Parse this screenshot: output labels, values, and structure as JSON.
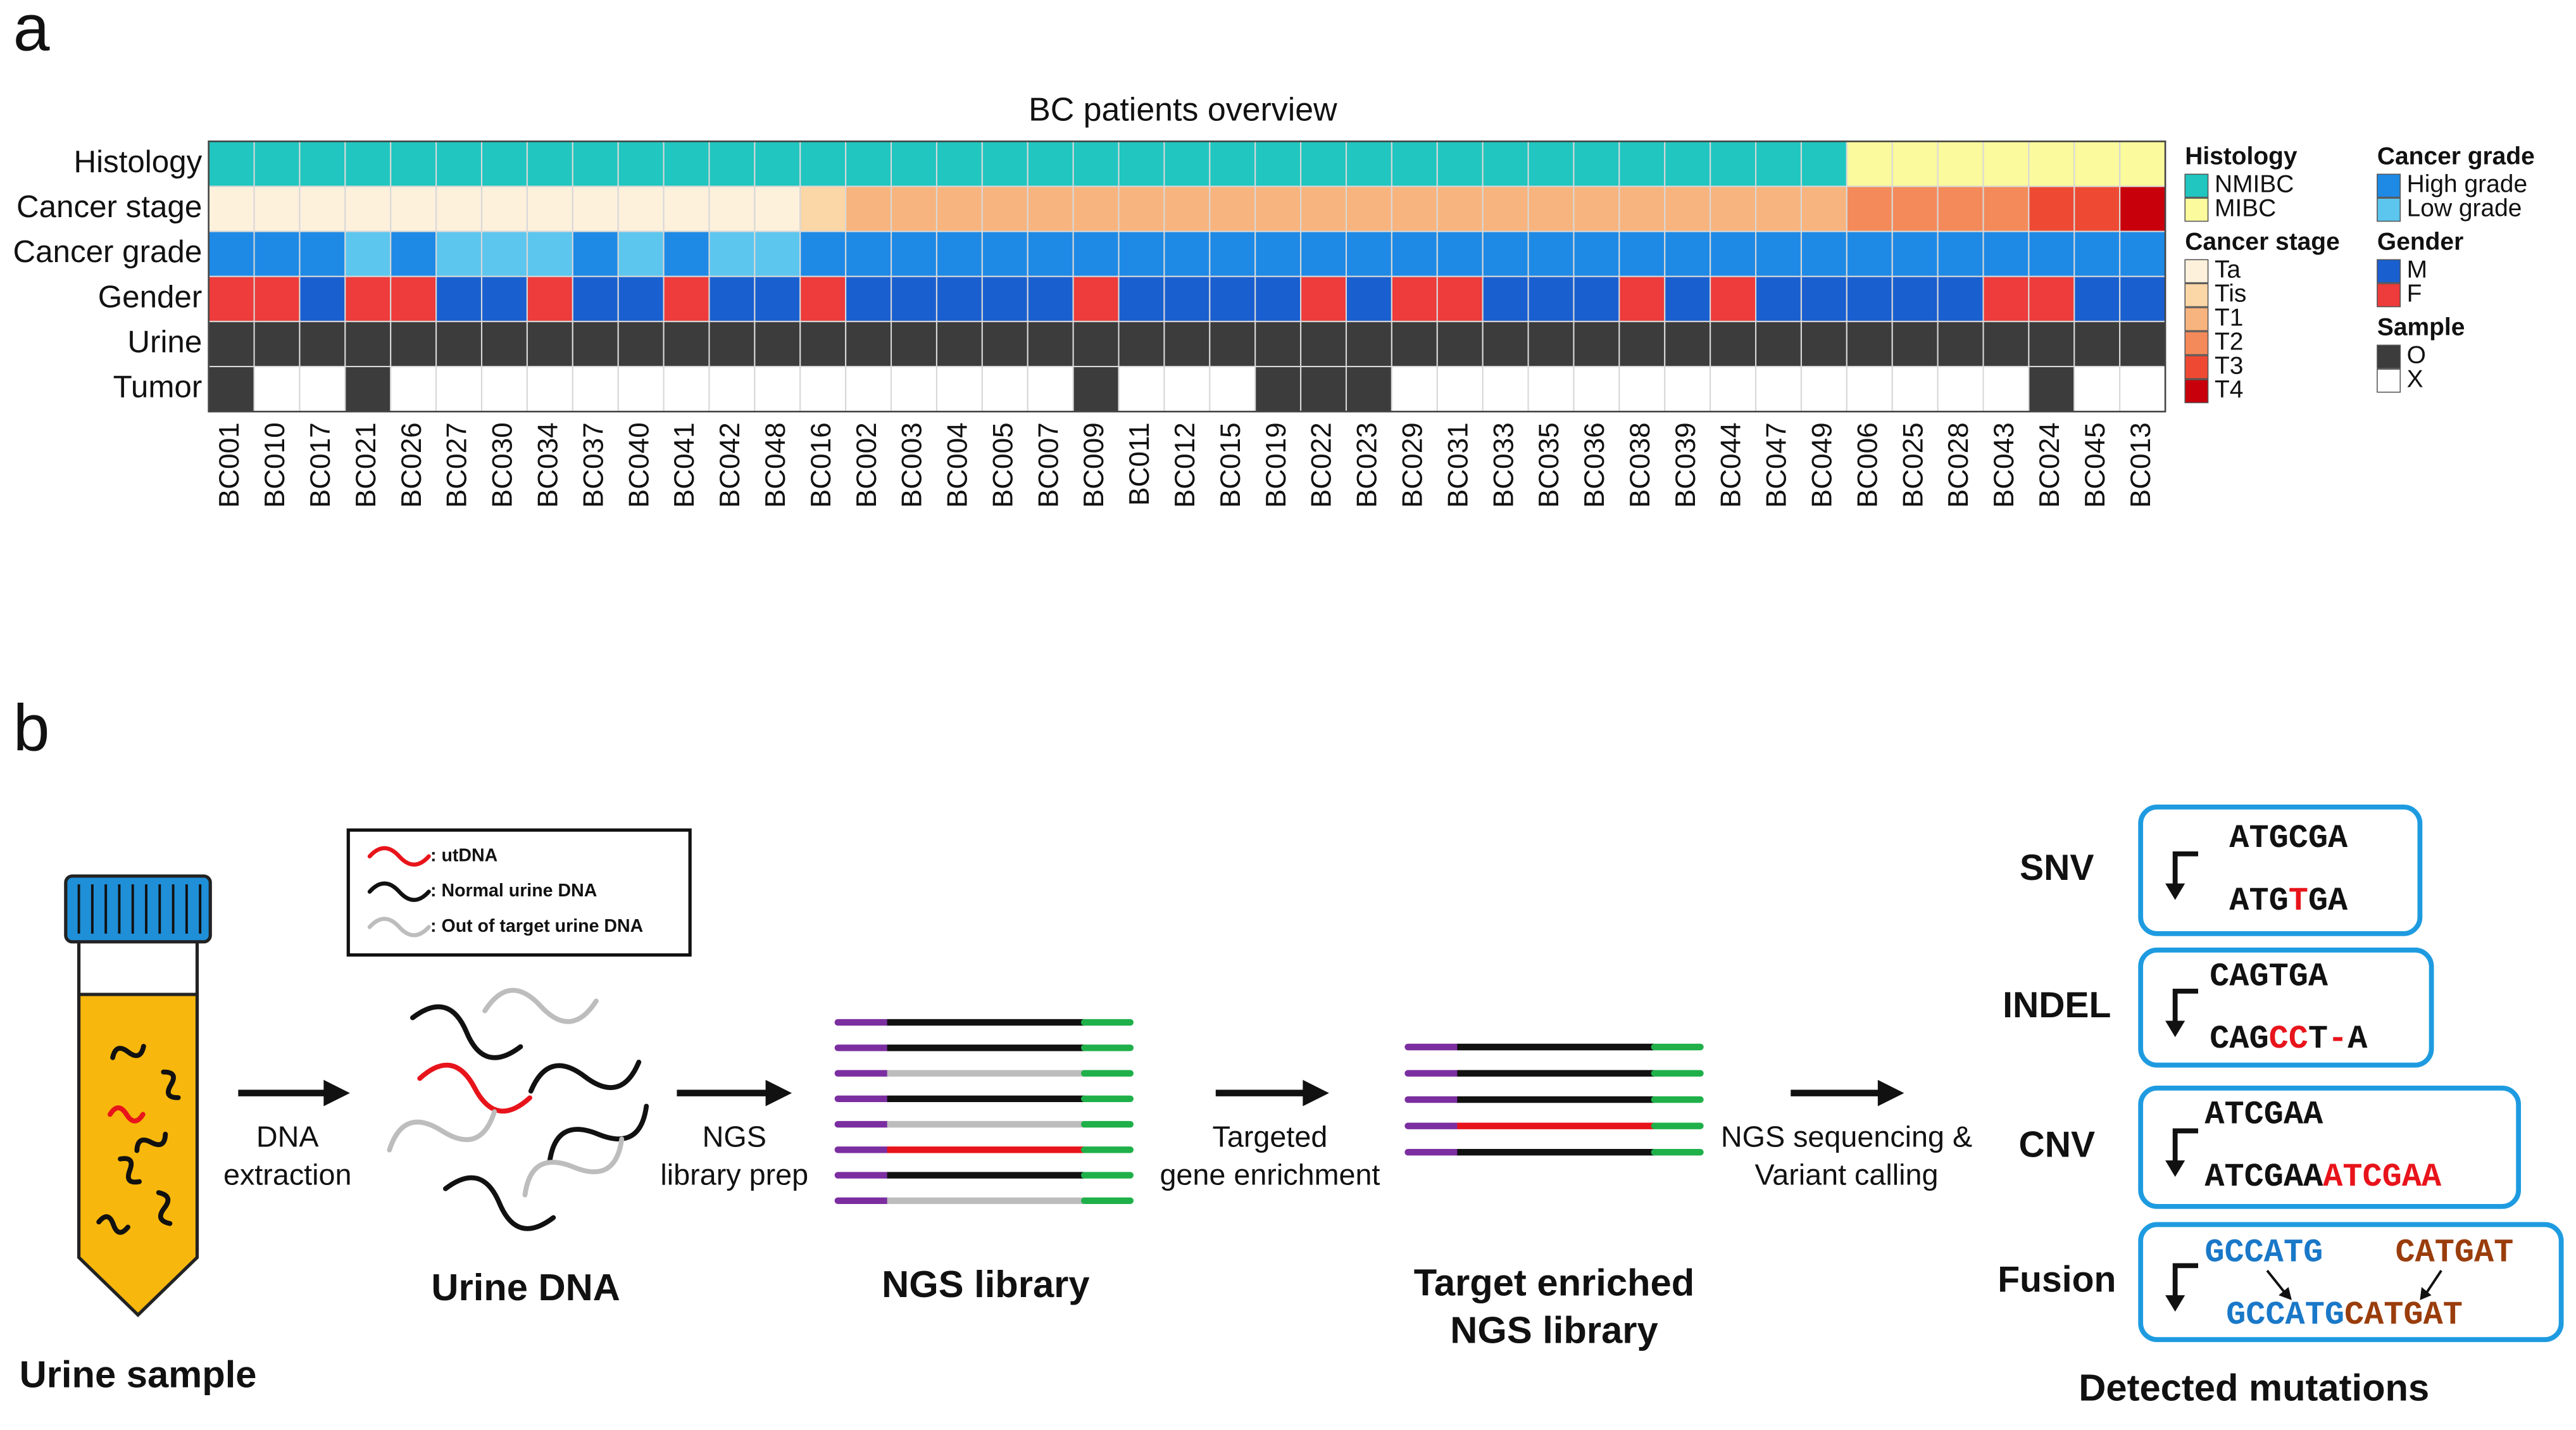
{
  "panel_a": {
    "label": "a",
    "title": "BC patients overview",
    "patients": [
      "BC001",
      "BC010",
      "BC017",
      "BC021",
      "BC026",
      "BC027",
      "BC030",
      "BC034",
      "BC037",
      "BC040",
      "BC041",
      "BC042",
      "BC048",
      "BC016",
      "BC002",
      "BC003",
      "BC004",
      "BC005",
      "BC007",
      "BC009",
      "BC011",
      "BC012",
      "BC015",
      "BC019",
      "BC022",
      "BC023",
      "BC029",
      "BC031",
      "BC033",
      "BC035",
      "BC036",
      "BC038",
      "BC039",
      "BC044",
      "BC047",
      "BC049",
      "BC006",
      "BC025",
      "BC028",
      "BC043",
      "BC024",
      "BC045",
      "BC013"
    ],
    "rows": [
      {
        "name": "Histology",
        "values": [
          "NMIBC",
          "NMIBC",
          "NMIBC",
          "NMIBC",
          "NMIBC",
          "NMIBC",
          "NMIBC",
          "NMIBC",
          "NMIBC",
          "NMIBC",
          "NMIBC",
          "NMIBC",
          "NMIBC",
          "NMIBC",
          "NMIBC",
          "NMIBC",
          "NMIBC",
          "NMIBC",
          "NMIBC",
          "NMIBC",
          "NMIBC",
          "NMIBC",
          "NMIBC",
          "NMIBC",
          "NMIBC",
          "NMIBC",
          "NMIBC",
          "NMIBC",
          "NMIBC",
          "NMIBC",
          "NMIBC",
          "NMIBC",
          "NMIBC",
          "NMIBC",
          "NMIBC",
          "NMIBC",
          "MIBC",
          "MIBC",
          "MIBC",
          "MIBC",
          "MIBC",
          "MIBC",
          "MIBC"
        ]
      },
      {
        "name": "Cancer stage",
        "values": [
          "Ta",
          "Ta",
          "Ta",
          "Ta",
          "Ta",
          "Ta",
          "Ta",
          "Ta",
          "Ta",
          "Ta",
          "Ta",
          "Ta",
          "Ta",
          "Tis",
          "T1",
          "T1",
          "T1",
          "T1",
          "T1",
          "T1",
          "T1",
          "T1",
          "T1",
          "T1",
          "T1",
          "T1",
          "T1",
          "T1",
          "T1",
          "T1",
          "T1",
          "T1",
          "T1",
          "T1",
          "T1",
          "T1",
          "T2",
          "T2",
          "T2",
          "T2",
          "T3",
          "T3",
          "T4"
        ]
      },
      {
        "name": "Cancer grade",
        "values": [
          "High grade",
          "High grade",
          "High grade",
          "Low grade",
          "High grade",
          "Low grade",
          "Low grade",
          "Low grade",
          "High grade",
          "Low grade",
          "High grade",
          "Low grade",
          "Low grade",
          "High grade",
          "High grade",
          "High grade",
          "High grade",
          "High grade",
          "High grade",
          "High grade",
          "High grade",
          "High grade",
          "High grade",
          "High grade",
          "High grade",
          "High grade",
          "High grade",
          "High grade",
          "High grade",
          "High grade",
          "High grade",
          "High grade",
          "High grade",
          "High grade",
          "High grade",
          "High grade",
          "High grade",
          "High grade",
          "High grade",
          "High grade",
          "High grade",
          "High grade",
          "High grade"
        ]
      },
      {
        "name": "Gender",
        "values": [
          "F",
          "F",
          "M",
          "F",
          "F",
          "M",
          "M",
          "F",
          "M",
          "M",
          "F",
          "M",
          "M",
          "F",
          "M",
          "M",
          "M",
          "M",
          "M",
          "F",
          "M",
          "M",
          "M",
          "M",
          "F",
          "M",
          "F",
          "F",
          "M",
          "M",
          "M",
          "F",
          "M",
          "F",
          "M",
          "M",
          "M",
          "M",
          "M",
          "F",
          "F",
          "M",
          "M"
        ]
      },
      {
        "name": "Urine",
        "values": [
          "O",
          "O",
          "O",
          "O",
          "O",
          "O",
          "O",
          "O",
          "O",
          "O",
          "O",
          "O",
          "O",
          "O",
          "O",
          "O",
          "O",
          "O",
          "O",
          "O",
          "O",
          "O",
          "O",
          "O",
          "O",
          "O",
          "O",
          "O",
          "O",
          "O",
          "O",
          "O",
          "O",
          "O",
          "O",
          "O",
          "O",
          "O",
          "O",
          "O",
          "O",
          "O",
          "O"
        ]
      },
      {
        "name": "Tumor",
        "values": [
          "O",
          "X",
          "X",
          "O",
          "X",
          "X",
          "X",
          "X",
          "X",
          "X",
          "X",
          "X",
          "X",
          "X",
          "X",
          "X",
          "X",
          "X",
          "X",
          "O",
          "X",
          "X",
          "X",
          "O",
          "O",
          "O",
          "X",
          "X",
          "X",
          "X",
          "X",
          "X",
          "X",
          "X",
          "X",
          "X",
          "X",
          "X",
          "X",
          "X",
          "O",
          "X",
          "X"
        ]
      }
    ],
    "legends": [
      {
        "title": "Histology",
        "items": [
          {
            "label": "NMIBC",
            "color": "#20c6bf"
          },
          {
            "label": "MIBC",
            "color": "#fbfa9c"
          }
        ]
      },
      {
        "title": "Cancer stage",
        "items": [
          {
            "label": "Ta",
            "color": "#fdf1dc"
          },
          {
            "label": "Tis",
            "color": "#fbd6a6"
          },
          {
            "label": "T1",
            "color": "#f8b47e"
          },
          {
            "label": "T2",
            "color": "#f48a5a"
          },
          {
            "label": "T3",
            "color": "#ee4a33"
          },
          {
            "label": "T4",
            "color": "#c8000b"
          }
        ]
      },
      {
        "title": "Cancer grade",
        "items": [
          {
            "label": "High grade",
            "color": "#1e8ae6"
          },
          {
            "label": "Low grade",
            "color": "#5cc6ee"
          }
        ]
      },
      {
        "title": "Gender",
        "items": [
          {
            "label": "M",
            "color": "#1a5fd0"
          },
          {
            "label": "F",
            "color": "#ee3b3b"
          }
        ]
      },
      {
        "title": "Sample",
        "items": [
          {
            "label": "O",
            "color": "#3c3c3c"
          },
          {
            "label": "X",
            "color": "#ffffff"
          }
        ]
      }
    ]
  },
  "panel_b": {
    "label": "b",
    "legend_box": [
      {
        "label": ": utDNA",
        "color": "#e8141b"
      },
      {
        "label": ": Normal urine DNA",
        "color": "#111111"
      },
      {
        "label": ": Out of target urine DNA",
        "color": "#bdbdbd"
      }
    ],
    "arrow_labels": [
      [
        "DNA",
        "extraction"
      ],
      [
        "NGS",
        "library prep"
      ],
      [
        "Targeted",
        "gene enrichment"
      ],
      [
        "NGS sequencing &",
        "Variant calling"
      ]
    ],
    "captions": [
      [
        "Urine sample"
      ],
      [
        "Urine DNA"
      ],
      [
        "NGS library"
      ],
      [
        "Target enriched",
        "NGS library"
      ],
      [
        "Detected mutations"
      ]
    ],
    "adapter_colors": [
      "#7b2ea0",
      "#1fb04a"
    ],
    "library_strands": [
      "#111111",
      "#111111",
      "#bdbdbd",
      "#111111",
      "#bdbdbd",
      "#e8141b",
      "#111111",
      "#bdbdbd"
    ],
    "enriched_strands": [
      "#111111",
      "#111111",
      "#111111",
      "#e8141b",
      "#111111"
    ],
    "mutations": [
      {
        "type": "SNV",
        "top": [
          [
            {
              "text": "ATGCGA",
              "color": "#111111"
            }
          ]
        ],
        "bottom": [
          {
            "text": "ATG",
            "color": "#111111"
          },
          {
            "text": "T",
            "color": "#e8141b"
          },
          {
            "text": "GA",
            "color": "#111111"
          }
        ]
      },
      {
        "type": "INDEL",
        "top": [
          [
            {
              "text": "CAGTGA",
              "color": "#111111"
            }
          ]
        ],
        "bottom": [
          {
            "text": "CAG",
            "color": "#111111"
          },
          {
            "text": "CC",
            "color": "#e8141b"
          },
          {
            "text": "T",
            "color": "#111111"
          },
          {
            "text": "-",
            "color": "#e8141b"
          },
          {
            "text": "A",
            "color": "#111111"
          }
        ]
      },
      {
        "type": "CNV",
        "top": [
          [
            {
              "text": "ATCGAA",
              "color": "#111111"
            }
          ]
        ],
        "bottom": [
          {
            "text": "ATCGAA",
            "color": "#111111"
          },
          {
            "text": "ATCGAA",
            "color": "#e8141b"
          }
        ]
      },
      {
        "type": "Fusion",
        "top": [
          [
            {
              "text": "GCCATG",
              "color": "#1a78c8"
            }
          ],
          [
            {
              "text": "CATGAT",
              "color": "#9a3d0c"
            }
          ]
        ],
        "bottom": [
          {
            "text": "GCCATG",
            "color": "#1a78c8"
          },
          {
            "text": "CATGAT",
            "color": "#9a3d0c"
          }
        ]
      }
    ],
    "box_color": "#1e9be0",
    "tube": {
      "cap": "#1f8fd8",
      "fill": "#f7b70c"
    }
  }
}
